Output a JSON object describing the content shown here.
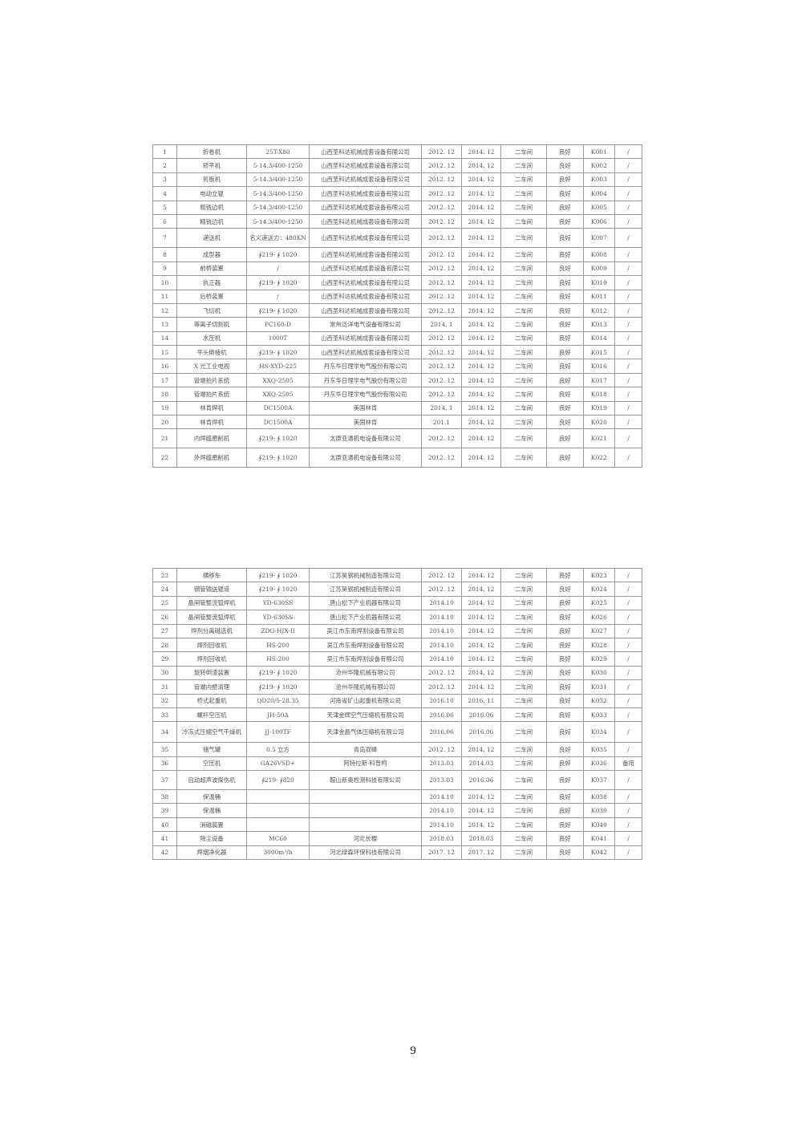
{
  "tables": [
    {
      "rows": [
        [
          "1",
          "折卷机",
          "25T-X80",
          "山西圣科达机械成套设备有限公司",
          "2012. 12",
          "2014. 12",
          "二车间",
          "良好",
          "K001",
          "/"
        ],
        [
          "2",
          "矫平机",
          "5-14.3/400-1250",
          "山西圣科达机械成套设备有限公司",
          "2012. 12",
          "2014. 12",
          "二车间",
          "良好",
          "K002",
          "/"
        ],
        [
          "3",
          "剪板机",
          "5-14.3/400-1250",
          "山西圣科达机械成套设备有限公司",
          "2012. 12",
          "2014. 12",
          "二车间",
          "良好",
          "K003",
          "/"
        ],
        [
          "4",
          "电动立辊",
          "5-14.3/400-1250",
          "山西圣科达机械成套设备有限公司",
          "2012. 12",
          "2014. 12",
          "二车间",
          "良好",
          "K004",
          "/"
        ],
        [
          "5",
          "粗铣边机",
          "5-14.3/400-1250",
          "山西圣科达机械成套设备有限公司",
          "2012. 12",
          "2014. 12",
          "二车间",
          "良好",
          "K005",
          "/"
        ],
        [
          "6",
          "精铣边机",
          "5-14.3/400-1250",
          "山西圣科达机械成套设备有限公司",
          "2012. 12",
          "2014. 12",
          "二车间",
          "良好",
          "K006",
          "/"
        ],
        [
          "7",
          "递送机",
          "名义递送力：480KN",
          "山西圣科达机械成套设备有限公司",
          "2012. 12",
          "2014. 12",
          "二车间",
          "良好",
          "K007",
          "/"
        ],
        [
          "8",
          "成型器",
          "∮219- ∮ 1020",
          "山西圣科达机械成套设备有限公司",
          "2012. 12",
          "2014. 12",
          "二车间",
          "良好",
          "K008",
          "/"
        ],
        [
          "9",
          "前桥装置",
          "/",
          "山西圣科达机械成套设备有限公司",
          "2012. 12",
          "2014. 12",
          "二车间",
          "良好",
          "K009",
          "/"
        ],
        [
          "10",
          "执正器",
          "∮219- ∮ 1020",
          "山西圣科达机械成套设备有限公司",
          "2012. 12",
          "2014. 12",
          "二车间",
          "良好",
          "K010",
          "/"
        ],
        [
          "11",
          "后桥装置",
          "/",
          "山西圣科达机械成套设备有限公司",
          "2012. 12",
          "2014. 12",
          "二车间",
          "良好",
          "K011",
          "/"
        ],
        [
          "12",
          "飞切机",
          "∮219- ∮ 1020",
          "山西圣科达机械成套设备有限公司",
          "2012. 12",
          "2014. 12",
          "二车间",
          "良好",
          "K012",
          "/"
        ],
        [
          "13",
          "等离子切割机",
          "PC160-D",
          "常州泛洋电气设备有限公司",
          "2014. 1",
          "2014. 12",
          "二车间",
          "良好",
          "K013",
          "/"
        ],
        [
          "14",
          "水压机",
          "1000T",
          "山西圣科达机械成套设备有限公司",
          "2012. 12",
          "2014. 12",
          "二车间",
          "良好",
          "K014",
          "/"
        ],
        [
          "15",
          "平头倒棱机",
          "∮219- ∮ 1020",
          "山西圣科达机械成套设备有限公司",
          "2012. 12",
          "2014. 12",
          "二车间",
          "良好",
          "K015",
          "/"
        ],
        [
          "16",
          "X 光工业电视",
          "HS-XYD-225",
          "丹东华日理学电气股份有限公司",
          "2012. 12",
          "2014. 12",
          "二车间",
          "良好",
          "K016",
          "/"
        ],
        [
          "17",
          "管端拍片系统",
          "XXQ-2505",
          "丹东华日理学电气股份有限公司",
          "2012. 12",
          "2014. 12",
          "二车间",
          "良好",
          "K017",
          "/"
        ],
        [
          "18",
          "管端拍片系统",
          "XXQ-2505",
          "丹东华日理学电气股份有限公司",
          "2012. 12",
          "2014. 12",
          "二车间",
          "良好",
          "K018",
          "/"
        ],
        [
          "19",
          "林肯焊机",
          "DC1500A",
          "美国林肯",
          "2014. 1",
          "2014. 12",
          "二车间",
          "良好",
          "K019",
          "/"
        ],
        [
          "20",
          "林肯焊机",
          "DC1500A",
          "美国林肯",
          "201.1",
          "2014. 12",
          "二车间",
          "良好",
          "K020",
          "/"
        ],
        [
          "21",
          "内焊缝磨削机",
          "∮219- ∮ 1020",
          "太原亚通机电设备有限公司",
          "2012. 12",
          "2014. 12",
          "二车间",
          "良好",
          "K021",
          "/"
        ],
        [
          "22",
          "外焊缝磨削机",
          "∮219- ∮ 1020",
          "太原亚通机电设备有限公司",
          "2012. 12",
          "2014. 12",
          "二车间",
          "良好",
          "K022",
          "/"
        ]
      ]
    },
    {
      "rows": [
        [
          "23",
          "横移车",
          "∮219- ∮ 1020",
          "江苏昊钢机械制造有限公司",
          "2012. 12",
          "2014. 12",
          "二车间",
          "良好",
          "K023",
          "/"
        ],
        [
          "24",
          "钢管输送辊道",
          "∮219- ∮ 1020",
          "江苏昊钢机械制造有限公司",
          "2012. 12",
          "2014. 12",
          "二车间",
          "良好",
          "K024",
          "/"
        ],
        [
          "25",
          "晶闸管整流弧焊机",
          "YD-630SS",
          "唐山松下产业机器有限公司",
          "2014.10",
          "2014. 12",
          "二车间",
          "良好",
          "K025",
          "/"
        ],
        [
          "26",
          "晶闸管整流弧焊机",
          "YD-630SS",
          "唐山松下产业机器有限公司",
          "2014.10",
          "2014. 12",
          "二车间",
          "良好",
          "K026",
          "/"
        ],
        [
          "27",
          "焊剂分离磁选机",
          "ZDG-HJX-II",
          "吴江市东南焊割设备有限公司",
          "2014.10",
          "2014. 12",
          "二车间",
          "良好",
          "K027",
          "/"
        ],
        [
          "28",
          "焊剂回收机",
          "HS-200",
          "吴江市东南焊割设备有限公司",
          "2014.10",
          "2014. 12",
          "二车间",
          "良好",
          "K028",
          "/"
        ],
        [
          "29",
          "焊剂回收机",
          "HS-200",
          "吴江市东南焊割设备有限公司",
          "2014.10",
          "2014. 12",
          "二车间",
          "良好",
          "K029",
          "/"
        ],
        [
          "30",
          "旋转倒渣装置",
          "∮219- ∮ 1020",
          "沧州华隆机械有限公司",
          "2012. 12",
          "2014. 12",
          "二车间",
          "良好",
          "K030",
          "/"
        ],
        [
          "31",
          "管端内壁清理",
          "∮219- ∮ 1020",
          "沧州华隆机械有限公司",
          "2012. 12",
          "2014. 12",
          "二车间",
          "良好",
          "K031",
          "/"
        ],
        [
          "32",
          "桥式起重机",
          "QD20/5-28.35",
          "河南省矿山起重机有限公司",
          "2016.10",
          "2016. 11",
          "二车间",
          "良好",
          "K032",
          "/"
        ],
        [
          "33",
          "螺杆空压机",
          "JH-50A",
          "天津金辉空气压缩机有限公司",
          "2016.06",
          "2016.06",
          "二车间",
          "良好",
          "K033",
          "/"
        ],
        [
          "34",
          "冷冻式压缩空气干燥机",
          "JJ-100TF",
          "天津金晶气体压缩机有限公司",
          "2016.06",
          "2016.06",
          "二车间",
          "良好",
          "K034",
          "/"
        ],
        [
          "35",
          "储气罐",
          "0.5 立方",
          "青岛双峰",
          "2012. 12",
          "2014. 12",
          "二车间",
          "良好",
          "K035",
          "/"
        ],
        [
          "36",
          "空压机",
          "GA26VSD+",
          "阿特拉斯·科普柯",
          "2013.03",
          "2014.03",
          "二车间",
          "良好",
          "K036",
          "备用"
        ],
        [
          "37",
          "自动超声波探伤机",
          "∮219- ∮820",
          "鞍山新奥检测科技有限公司",
          "2013.03",
          "2016.06",
          "二车间",
          "良好",
          "K037",
          "/"
        ],
        [
          "38",
          "保温桶",
          "",
          "",
          "2014.10",
          "2014. 12",
          "二车间",
          "良好",
          "K038",
          "/"
        ],
        [
          "39",
          "保温桶",
          "",
          "",
          "2014.10",
          "2014. 12",
          "二车间",
          "良好",
          "K039",
          "/"
        ],
        [
          "40",
          "消磁装置",
          "",
          "",
          "2014.10",
          "2014. 12",
          "二车间",
          "良好",
          "K040",
          "/"
        ],
        [
          "41",
          "除尘设备",
          "MC60",
          "河北长樱",
          "2018.03",
          "2018.03",
          "二车间",
          "良好",
          "K041",
          "/"
        ],
        [
          "42",
          "焊烟净化器",
          "3000m³/h",
          "河北绿森环保科技有限公司",
          "2017. 12",
          "2017. 12",
          "二车间",
          "良好",
          "K042",
          "/"
        ]
      ]
    }
  ],
  "page_number": "9"
}
